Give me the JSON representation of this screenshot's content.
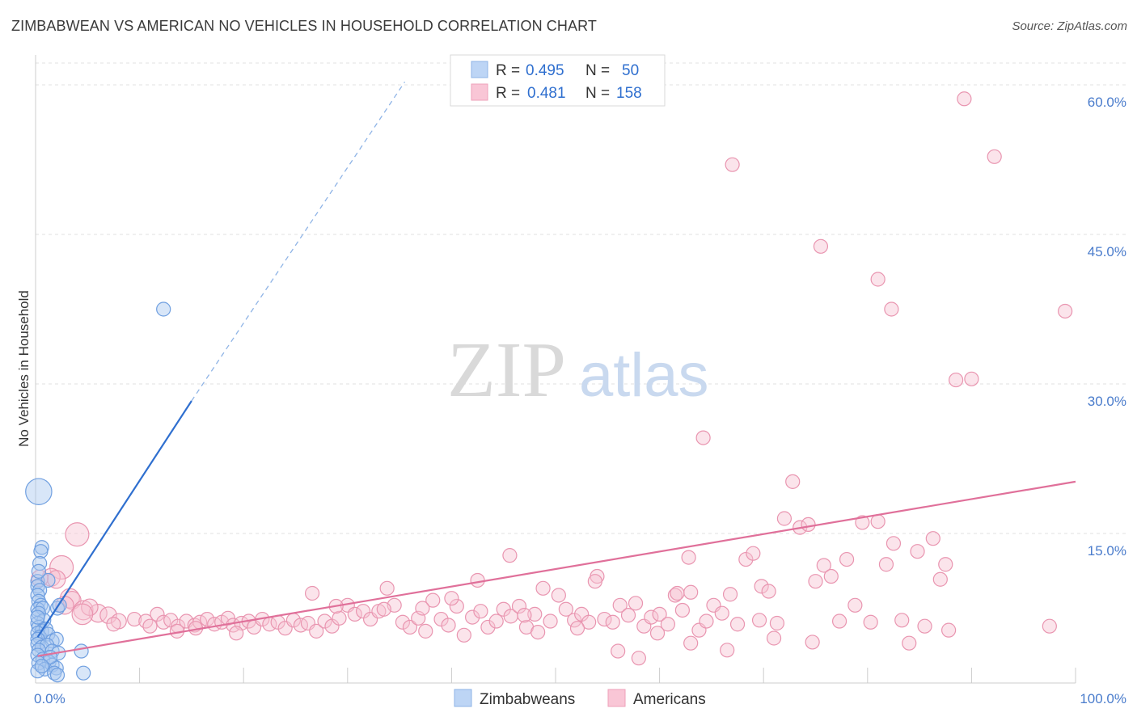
{
  "title": "ZIMBABWEAN VS AMERICAN NO VEHICLES IN HOUSEHOLD CORRELATION CHART",
  "source": "Source: ZipAtlas.com",
  "watermark": {
    "part1": "ZIP",
    "part2": "atlas"
  },
  "chart_data": {
    "type": "scatter",
    "title": "ZIMBABWEAN VS AMERICAN NO VEHICLES IN HOUSEHOLD CORRELATION CHART",
    "xlabel": "",
    "ylabel": "No Vehicles in Household",
    "xlim": [
      0,
      100
    ],
    "ylim": [
      0,
      63
    ],
    "x_tick_labels": [
      {
        "value": 0,
        "label": "0.0%"
      },
      {
        "value": 100,
        "label": "100.0%"
      }
    ],
    "y_ticks": [
      {
        "value": 15,
        "label": "15.0%"
      },
      {
        "value": 30,
        "label": "30.0%"
      },
      {
        "value": 45,
        "label": "45.0%"
      },
      {
        "value": 60,
        "label": "60.0%"
      }
    ],
    "grid": true,
    "legend_position": "top-center",
    "stats": [
      {
        "r_label": "R =",
        "r_value": "0.495",
        "n_label": "N =",
        "n_value": "50"
      },
      {
        "r_label": "R =",
        "r_value": "0.481",
        "n_label": "N =",
        "n_value": "158"
      }
    ],
    "series": [
      {
        "name": "Zimbabweans",
        "color": "#6f9fe0",
        "fill": "#a9c8f0",
        "line_color": "#2f6fcf",
        "trend": {
          "x0": 0.2,
          "y0": 4.6,
          "x1": 15.0,
          "y1": 28.3,
          "dash_to_x": 35.5,
          "dash_to_y": 60.3
        },
        "points": [
          [
            0.3,
            19.2,
            1.9
          ],
          [
            0.6,
            13.6,
            1
          ],
          [
            0.5,
            13.2,
            1
          ],
          [
            0.2,
            10.2,
            1
          ],
          [
            1.2,
            10.3,
            1
          ],
          [
            0.2,
            9.7,
            1
          ],
          [
            0.4,
            9.3,
            1
          ],
          [
            0.2,
            8.8,
            1
          ],
          [
            0.3,
            8.2,
            1
          ],
          [
            0.5,
            7.8,
            1
          ],
          [
            0.2,
            7.4,
            1
          ],
          [
            0.7,
            7.5,
            1
          ],
          [
            2.1,
            7.5,
            1
          ],
          [
            2.3,
            7.8,
            1
          ],
          [
            0.3,
            7.0,
            1
          ],
          [
            0.8,
            6.3,
            1
          ],
          [
            0.2,
            6.0,
            1
          ],
          [
            0.3,
            5.6,
            1
          ],
          [
            0.6,
            5.2,
            1
          ],
          [
            1.0,
            5.4,
            1
          ],
          [
            0.2,
            5.0,
            1
          ],
          [
            0.4,
            4.6,
            1
          ],
          [
            1.2,
            4.9,
            1
          ],
          [
            0.2,
            4.4,
            1
          ],
          [
            1.6,
            4.2,
            1
          ],
          [
            2.0,
            4.4,
            1
          ],
          [
            0.2,
            3.9,
            1
          ],
          [
            0.6,
            3.6,
            1
          ],
          [
            1.1,
            3.8,
            1
          ],
          [
            0.3,
            3.3,
            1
          ],
          [
            1.6,
            3.2,
            1
          ],
          [
            2.2,
            3.0,
            1
          ],
          [
            4.4,
            3.2,
            1
          ],
          [
            0.2,
            2.8,
            1
          ],
          [
            0.7,
            2.4,
            1
          ],
          [
            1.3,
            2.1,
            1
          ],
          [
            0.3,
            2.0,
            1
          ],
          [
            1.6,
            1.8,
            1
          ],
          [
            0.9,
            1.4,
            1
          ],
          [
            2.0,
            1.5,
            1
          ],
          [
            0.2,
            1.2,
            1
          ],
          [
            1.8,
            1.0,
            1
          ],
          [
            4.6,
            1.0,
            1
          ],
          [
            2.1,
            0.8,
            1
          ],
          [
            12.3,
            37.5,
            1
          ],
          [
            0.4,
            12.0,
            1
          ],
          [
            0.3,
            11.2,
            1
          ],
          [
            0.2,
            6.6,
            1
          ],
          [
            1.4,
            2.6,
            1
          ],
          [
            0.6,
            1.7,
            1
          ]
        ]
      },
      {
        "name": "Americans",
        "color": "#e995b0",
        "fill": "#f6c3d3",
        "line_color": "#e0709a",
        "trend": {
          "x0": 0.2,
          "y0": 2.7,
          "x1": 100,
          "y1": 20.2
        },
        "points": [
          [
            4.0,
            14.9,
            1.7
          ],
          [
            2.5,
            11.6,
            1.7
          ],
          [
            1.5,
            10.6,
            1.3
          ],
          [
            2.0,
            10.4,
            1.3
          ],
          [
            0.4,
            10.5,
            1.2
          ],
          [
            3.3,
            8.5,
            1.4
          ],
          [
            3.5,
            8.3,
            1.3
          ],
          [
            4.6,
            7.3,
            1.4
          ],
          [
            2.8,
            7.8,
            1.3
          ],
          [
            6.0,
            7.0,
            1.3
          ],
          [
            7.0,
            6.8,
            1.2
          ],
          [
            5.2,
            7.6,
            1.2
          ],
          [
            4.5,
            6.9,
            1.5
          ],
          [
            8.0,
            6.2,
            1.1
          ],
          [
            7.5,
            5.9,
            1.0
          ],
          [
            9.5,
            6.4,
            1
          ],
          [
            10.6,
            6.2,
            1
          ],
          [
            11.0,
            5.7,
            1
          ],
          [
            11.7,
            6.9,
            1
          ],
          [
            12.3,
            6.1,
            1
          ],
          [
            13.0,
            6.3,
            1
          ],
          [
            13.7,
            5.7,
            1
          ],
          [
            14.5,
            6.2,
            1
          ],
          [
            15.3,
            5.8,
            1
          ],
          [
            15.8,
            6.1,
            1
          ],
          [
            16.5,
            6.4,
            1
          ],
          [
            17.2,
            5.9,
            1
          ],
          [
            17.9,
            6.1,
            1
          ],
          [
            18.5,
            6.5,
            1
          ],
          [
            19.0,
            5.8,
            1
          ],
          [
            19.8,
            6.0,
            1
          ],
          [
            20.5,
            6.2,
            1
          ],
          [
            21.0,
            5.6,
            1
          ],
          [
            21.8,
            6.4,
            1
          ],
          [
            22.5,
            5.9,
            1
          ],
          [
            23.3,
            6.1,
            1
          ],
          [
            24.0,
            5.5,
            1
          ],
          [
            24.8,
            6.3,
            1
          ],
          [
            25.5,
            5.8,
            1
          ],
          [
            26.2,
            6.0,
            1
          ],
          [
            27.0,
            5.2,
            1
          ],
          [
            27.8,
            6.2,
            1
          ],
          [
            28.5,
            5.7,
            1
          ],
          [
            29.2,
            6.5,
            1
          ],
          [
            30.0,
            7.8,
            1
          ],
          [
            30.7,
            6.9,
            1
          ],
          [
            31.5,
            7.2,
            1
          ],
          [
            32.2,
            6.4,
            1
          ],
          [
            33.0,
            7.2,
            1
          ],
          [
            33.8,
            9.5,
            1
          ],
          [
            34.5,
            7.8,
            1
          ],
          [
            35.3,
            6.1,
            1
          ],
          [
            36.0,
            5.6,
            1
          ],
          [
            36.8,
            6.5,
            1
          ],
          [
            37.5,
            5.2,
            1
          ],
          [
            38.2,
            8.3,
            1
          ],
          [
            39.0,
            6.4,
            1
          ],
          [
            39.7,
            5.8,
            1
          ],
          [
            40.5,
            7.7,
            1
          ],
          [
            41.2,
            4.8,
            1
          ],
          [
            42.0,
            6.6,
            1
          ],
          [
            42.8,
            7.2,
            1
          ],
          [
            43.5,
            5.6,
            1
          ],
          [
            44.3,
            6.2,
            1
          ],
          [
            45.0,
            7.4,
            1
          ],
          [
            45.7,
            6.7,
            1
          ],
          [
            46.5,
            7.7,
            1
          ],
          [
            47.2,
            5.6,
            1
          ],
          [
            48.0,
            6.9,
            1
          ],
          [
            48.8,
            9.5,
            1
          ],
          [
            49.5,
            6.2,
            1
          ],
          [
            50.3,
            8.8,
            1
          ],
          [
            51.0,
            7.4,
            1
          ],
          [
            51.8,
            6.3,
            1
          ],
          [
            52.5,
            6.9,
            1
          ],
          [
            53.2,
            6.1,
            1
          ],
          [
            54.0,
            10.7,
            1
          ],
          [
            54.7,
            6.4,
            1
          ],
          [
            55.5,
            6.1,
            1
          ],
          [
            56.2,
            7.8,
            1
          ],
          [
            57.0,
            6.8,
            1
          ],
          [
            57.7,
            8.0,
            1
          ],
          [
            58.5,
            5.7,
            1
          ],
          [
            59.2,
            6.6,
            1
          ],
          [
            60.0,
            6.9,
            1
          ],
          [
            60.8,
            5.9,
            1
          ],
          [
            61.5,
            8.8,
            1
          ],
          [
            62.2,
            7.3,
            1
          ],
          [
            63.0,
            9.1,
            1
          ],
          [
            63.8,
            5.3,
            1
          ],
          [
            64.5,
            6.2,
            1
          ],
          [
            65.2,
            7.8,
            1
          ],
          [
            66.0,
            7.0,
            1
          ],
          [
            66.8,
            8.9,
            1
          ],
          [
            67.5,
            5.9,
            1
          ],
          [
            68.3,
            12.4,
            1
          ],
          [
            69.0,
            13.0,
            1
          ],
          [
            69.8,
            9.7,
            1
          ],
          [
            70.5,
            9.2,
            1
          ],
          [
            71.3,
            6.0,
            1
          ],
          [
            72.0,
            16.5,
            1
          ],
          [
            72.8,
            20.2,
            1
          ],
          [
            73.5,
            15.6,
            1
          ],
          [
            74.3,
            15.9,
            1
          ],
          [
            75.0,
            10.2,
            1
          ],
          [
            75.8,
            11.8,
            1
          ],
          [
            76.5,
            10.7,
            1
          ],
          [
            77.3,
            6.2,
            1
          ],
          [
            78.0,
            12.4,
            1
          ],
          [
            78.8,
            7.8,
            1
          ],
          [
            79.5,
            16.1,
            1
          ],
          [
            80.3,
            6.1,
            1
          ],
          [
            81.0,
            16.2,
            1
          ],
          [
            81.8,
            11.9,
            1
          ],
          [
            82.5,
            14.0,
            1
          ],
          [
            83.3,
            6.3,
            1
          ],
          [
            84.0,
            4.0,
            1
          ],
          [
            84.8,
            13.2,
            1
          ],
          [
            85.5,
            5.7,
            1
          ],
          [
            86.3,
            14.5,
            1
          ],
          [
            87.0,
            10.4,
            1
          ],
          [
            87.8,
            5.3,
            1
          ],
          [
            88.5,
            30.4,
            1
          ],
          [
            89.3,
            58.6,
            1
          ],
          [
            90.0,
            30.5,
            1
          ],
          [
            67.0,
            52.0,
            1
          ],
          [
            75.5,
            43.8,
            1
          ],
          [
            81.0,
            40.5,
            1
          ],
          [
            82.3,
            37.5,
            1
          ],
          [
            92.2,
            52.8,
            1
          ],
          [
            99.0,
            37.3,
            1
          ],
          [
            64.2,
            24.6,
            1
          ],
          [
            87.5,
            11.9,
            1
          ],
          [
            97.5,
            5.7,
            1
          ],
          [
            61.7,
            9.0,
            1
          ],
          [
            58.0,
            2.5,
            1
          ],
          [
            45.6,
            12.8,
            1
          ],
          [
            42.5,
            10.3,
            1
          ],
          [
            56.0,
            3.2,
            1
          ],
          [
            63.0,
            4.0,
            1
          ],
          [
            66.5,
            3.3,
            1
          ],
          [
            71.0,
            4.5,
            1
          ],
          [
            52.1,
            5.5,
            1
          ],
          [
            48.3,
            5.1,
            1
          ],
          [
            37.2,
            7.5,
            1
          ],
          [
            26.6,
            9.0,
            1
          ],
          [
            19.3,
            5.0,
            1
          ],
          [
            15.4,
            5.5,
            1
          ],
          [
            13.6,
            5.2,
            1
          ],
          [
            28.9,
            7.7,
            1
          ],
          [
            33.5,
            7.4,
            1
          ],
          [
            40.0,
            8.5,
            1
          ],
          [
            47.0,
            6.8,
            1
          ],
          [
            53.8,
            10.2,
            1
          ],
          [
            59.8,
            5.0,
            1
          ],
          [
            62.8,
            12.6,
            1
          ],
          [
            69.6,
            6.3,
            1
          ],
          [
            74.7,
            4.1,
            1
          ]
        ]
      }
    ]
  }
}
